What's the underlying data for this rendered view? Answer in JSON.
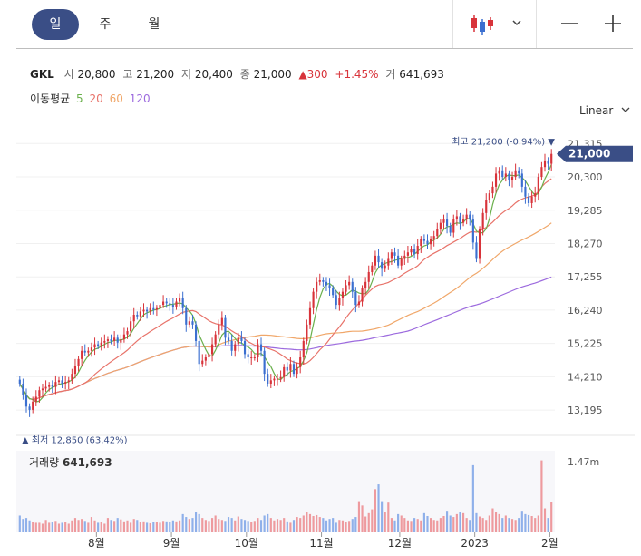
{
  "tabs": [
    {
      "label": "일",
      "active": true
    },
    {
      "label": "주",
      "active": false
    },
    {
      "label": "월",
      "active": false
    }
  ],
  "header": {
    "candle_icon": "candlestick-chart-icon",
    "dropdown_icon": "chevron-down-icon",
    "minus_icon": "zoom-out-icon",
    "plus_icon": "zoom-in-icon"
  },
  "quote": {
    "ticker": "GKL",
    "open_label": "시",
    "open": "20,800",
    "high_label": "고",
    "high": "21,200",
    "low_label": "저",
    "low": "20,400",
    "close_label": "종",
    "close": "21,000",
    "change": "▲300",
    "change_pct": "+1.45%",
    "volume_label": "거",
    "volume": "641,693"
  },
  "ma_legend": {
    "label": "이동평균",
    "periods": [
      "5",
      "20",
      "60",
      "120"
    ],
    "colors": [
      "#6ab04c",
      "#e8736a",
      "#f0a76a",
      "#9c6ade"
    ]
  },
  "scale_label": "Linear",
  "colors": {
    "up": "#d8333a",
    "down": "#3b6fd0",
    "accent": "#3a4e86"
  },
  "chart_data": {
    "type": "candlestick",
    "y_ticks": [
      "21,315",
      "20,300",
      "19,285",
      "18,270",
      "17,255",
      "16,240",
      "15,225",
      "14,210",
      "13,195"
    ],
    "ylim": [
      12700,
      21600
    ],
    "x_labels": [
      "8월",
      "9월",
      "10월",
      "11월",
      "12월",
      "2023",
      "2월"
    ],
    "current_price": "21,000",
    "high_annotation": "최고 21,200 (-0.94%) ▼",
    "low_annotation": "▲ 최저 12,850 (63.42%)",
    "volume_label": "거래량",
    "volume_value": "641,693",
    "volume_tick": "1.47m",
    "volume_max": 1700000,
    "closes": [
      14000,
      13650,
      13300,
      13200,
      13450,
      13600,
      13800,
      13850,
      13900,
      13950,
      13900,
      14050,
      14100,
      14000,
      14050,
      14100,
      14300,
      14550,
      14750,
      15000,
      14950,
      15000,
      15100,
      15200,
      15150,
      15250,
      15300,
      15350,
      15300,
      15400,
      15250,
      15350,
      15500,
      15600,
      15900,
      16100,
      16050,
      16200,
      16250,
      16200,
      16300,
      16250,
      16300,
      16400,
      16500,
      16450,
      16400,
      16350,
      16500,
      16600,
      16300,
      15800,
      15900,
      15800,
      15300,
      14600,
      14700,
      14800,
      14900,
      15200,
      15500,
      15800,
      16000,
      15400,
      15300,
      15000,
      15200,
      15400,
      15300,
      14900,
      14800,
      14800,
      14800,
      15200,
      15000,
      14300,
      14000,
      14100,
      14150,
      14150,
      14200,
      14500,
      14400,
      14600,
      14300,
      14500,
      14800,
      15300,
      15800,
      16300,
      16800,
      17100,
      17150,
      17100,
      17000,
      16900,
      16700,
      16400,
      16600,
      16800,
      17000,
      17100,
      16800,
      16400,
      16500,
      16900,
      17100,
      17400,
      17600,
      17900,
      17700,
      17500,
      17600,
      17800,
      18000,
      17900,
      17600,
      17800,
      17900,
      18000,
      18100,
      17950,
      18200,
      18400,
      18350,
      18250,
      18400,
      18500,
      18700,
      18900,
      19000,
      18800,
      18600,
      19000,
      19100,
      18900,
      19000,
      19150,
      19000,
      18300,
      17800,
      18700,
      19200,
      19600,
      19800,
      20000,
      20400,
      20500,
      20300,
      20400,
      20200,
      20300,
      20500,
      20400,
      20000,
      19700,
      19500,
      19700,
      19800,
      20300,
      20600,
      20800,
      20700,
      21000
    ],
    "volumes": [
      350000,
      280000,
      300000,
      250000,
      220000,
      200000,
      200000,
      180000,
      260000,
      200000,
      220000,
      240000,
      180000,
      200000,
      220000,
      180000,
      250000,
      300000,
      260000,
      280000,
      240000,
      200000,
      320000,
      250000,
      200000,
      220000,
      180000,
      300000,
      260000,
      240000,
      300000,
      270000,
      230000,
      250000,
      200000,
      280000,
      260000,
      210000,
      230000,
      200000,
      190000,
      210000,
      220000,
      200000,
      240000,
      230000,
      220000,
      250000,
      230000,
      250000,
      380000,
      320000,
      280000,
      300000,
      420000,
      380000,
      300000,
      260000,
      240000,
      300000,
      350000,
      280000,
      260000,
      240000,
      320000,
      300000,
      250000,
      330000,
      280000,
      260000,
      240000,
      220000,
      240000,
      300000,
      260000,
      350000,
      380000,
      300000,
      250000,
      280000,
      260000,
      300000,
      230000,
      200000,
      260000,
      320000,
      300000,
      350000,
      420000,
      380000,
      340000,
      360000,
      320000,
      300000,
      250000,
      280000,
      300000,
      200000,
      260000,
      250000,
      220000,
      240000,
      280000,
      320000,
      650000,
      560000,
      330000,
      400000,
      480000,
      900000,
      1000000,
      650000,
      420000,
      620000,
      300000,
      250000,
      380000,
      350000,
      300000,
      250000,
      240000,
      300000,
      280000,
      250000,
      400000,
      340000,
      300000,
      260000,
      250000,
      300000,
      340000,
      450000,
      350000,
      320000,
      380000,
      420000,
      400000,
      300000,
      260000,
      1400000,
      400000,
      330000,
      300000,
      260000,
      350000,
      500000,
      420000,
      380000,
      300000,
      350000,
      300000,
      280000,
      260000,
      300000,
      450000,
      380000,
      360000,
      340000,
      300000,
      350000,
      1500000,
      500000,
      300000,
      641693
    ]
  }
}
